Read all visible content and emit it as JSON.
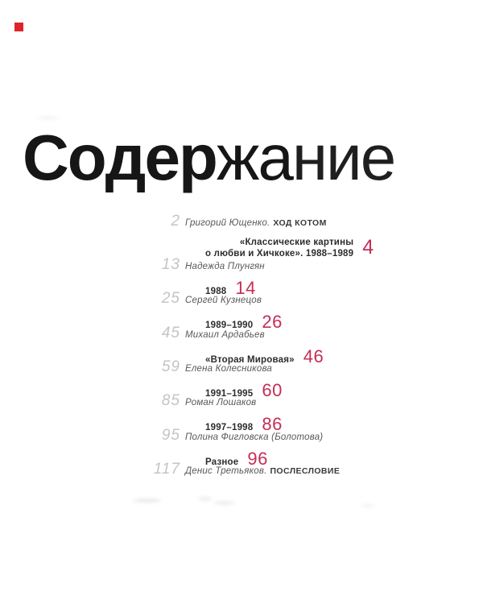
{
  "page": {
    "background": "#ffffff",
    "accent_red": "#c62d55",
    "marker_red": "#e0232b"
  },
  "title": {
    "text": "Содержание",
    "letters": [
      {
        "ch": "С",
        "weight": "heavy"
      },
      {
        "ch": "о",
        "weight": "heavy"
      },
      {
        "ch": "д",
        "weight": "bold"
      },
      {
        "ch": "е",
        "weight": "bold"
      },
      {
        "ch": "р",
        "weight": "bold"
      },
      {
        "ch": "ж",
        "weight": "regular"
      },
      {
        "ch": "а",
        "weight": "regular"
      },
      {
        "ch": "н",
        "weight": "light"
      },
      {
        "ch": "и",
        "weight": "light"
      },
      {
        "ch": "е",
        "weight": "light"
      }
    ]
  },
  "toc": {
    "entries": [
      {
        "num": "2",
        "name": "Григорий Ющенко.",
        "caps": "ХОД КОТОМ",
        "subtitle_lines": [
          "«Классические картины",
          "о любви и Хичкоке». 1988–1989"
        ],
        "page": "4"
      },
      {
        "num": "13",
        "name": "Надежда Плунгян",
        "subtitle_lines": [
          "1988"
        ],
        "page": "14"
      },
      {
        "num": "25",
        "name": "Сергей Кузнецов",
        "subtitle_lines": [
          "1989–1990"
        ],
        "page": "26"
      },
      {
        "num": "45",
        "name": "Михаил Ардабьев",
        "subtitle_lines": [
          "«Вторая Мировая»"
        ],
        "page": "46"
      },
      {
        "num": "59",
        "name": "Елена Колесникова",
        "subtitle_lines": [
          "1991–1995"
        ],
        "page": "60"
      },
      {
        "num": "85",
        "name": "Роман Лошаков",
        "subtitle_lines": [
          "1997–1998"
        ],
        "page": "86"
      },
      {
        "num": "95",
        "name": "Полина Фигловска (Болотова)",
        "subtitle_lines": [
          "Разное"
        ],
        "page": "96"
      },
      {
        "num": "117",
        "name": "Денис Третьяков.",
        "caps": "ПОСЛЕСЛОВИЕ",
        "subtitle_lines": [],
        "page": null
      }
    ]
  }
}
